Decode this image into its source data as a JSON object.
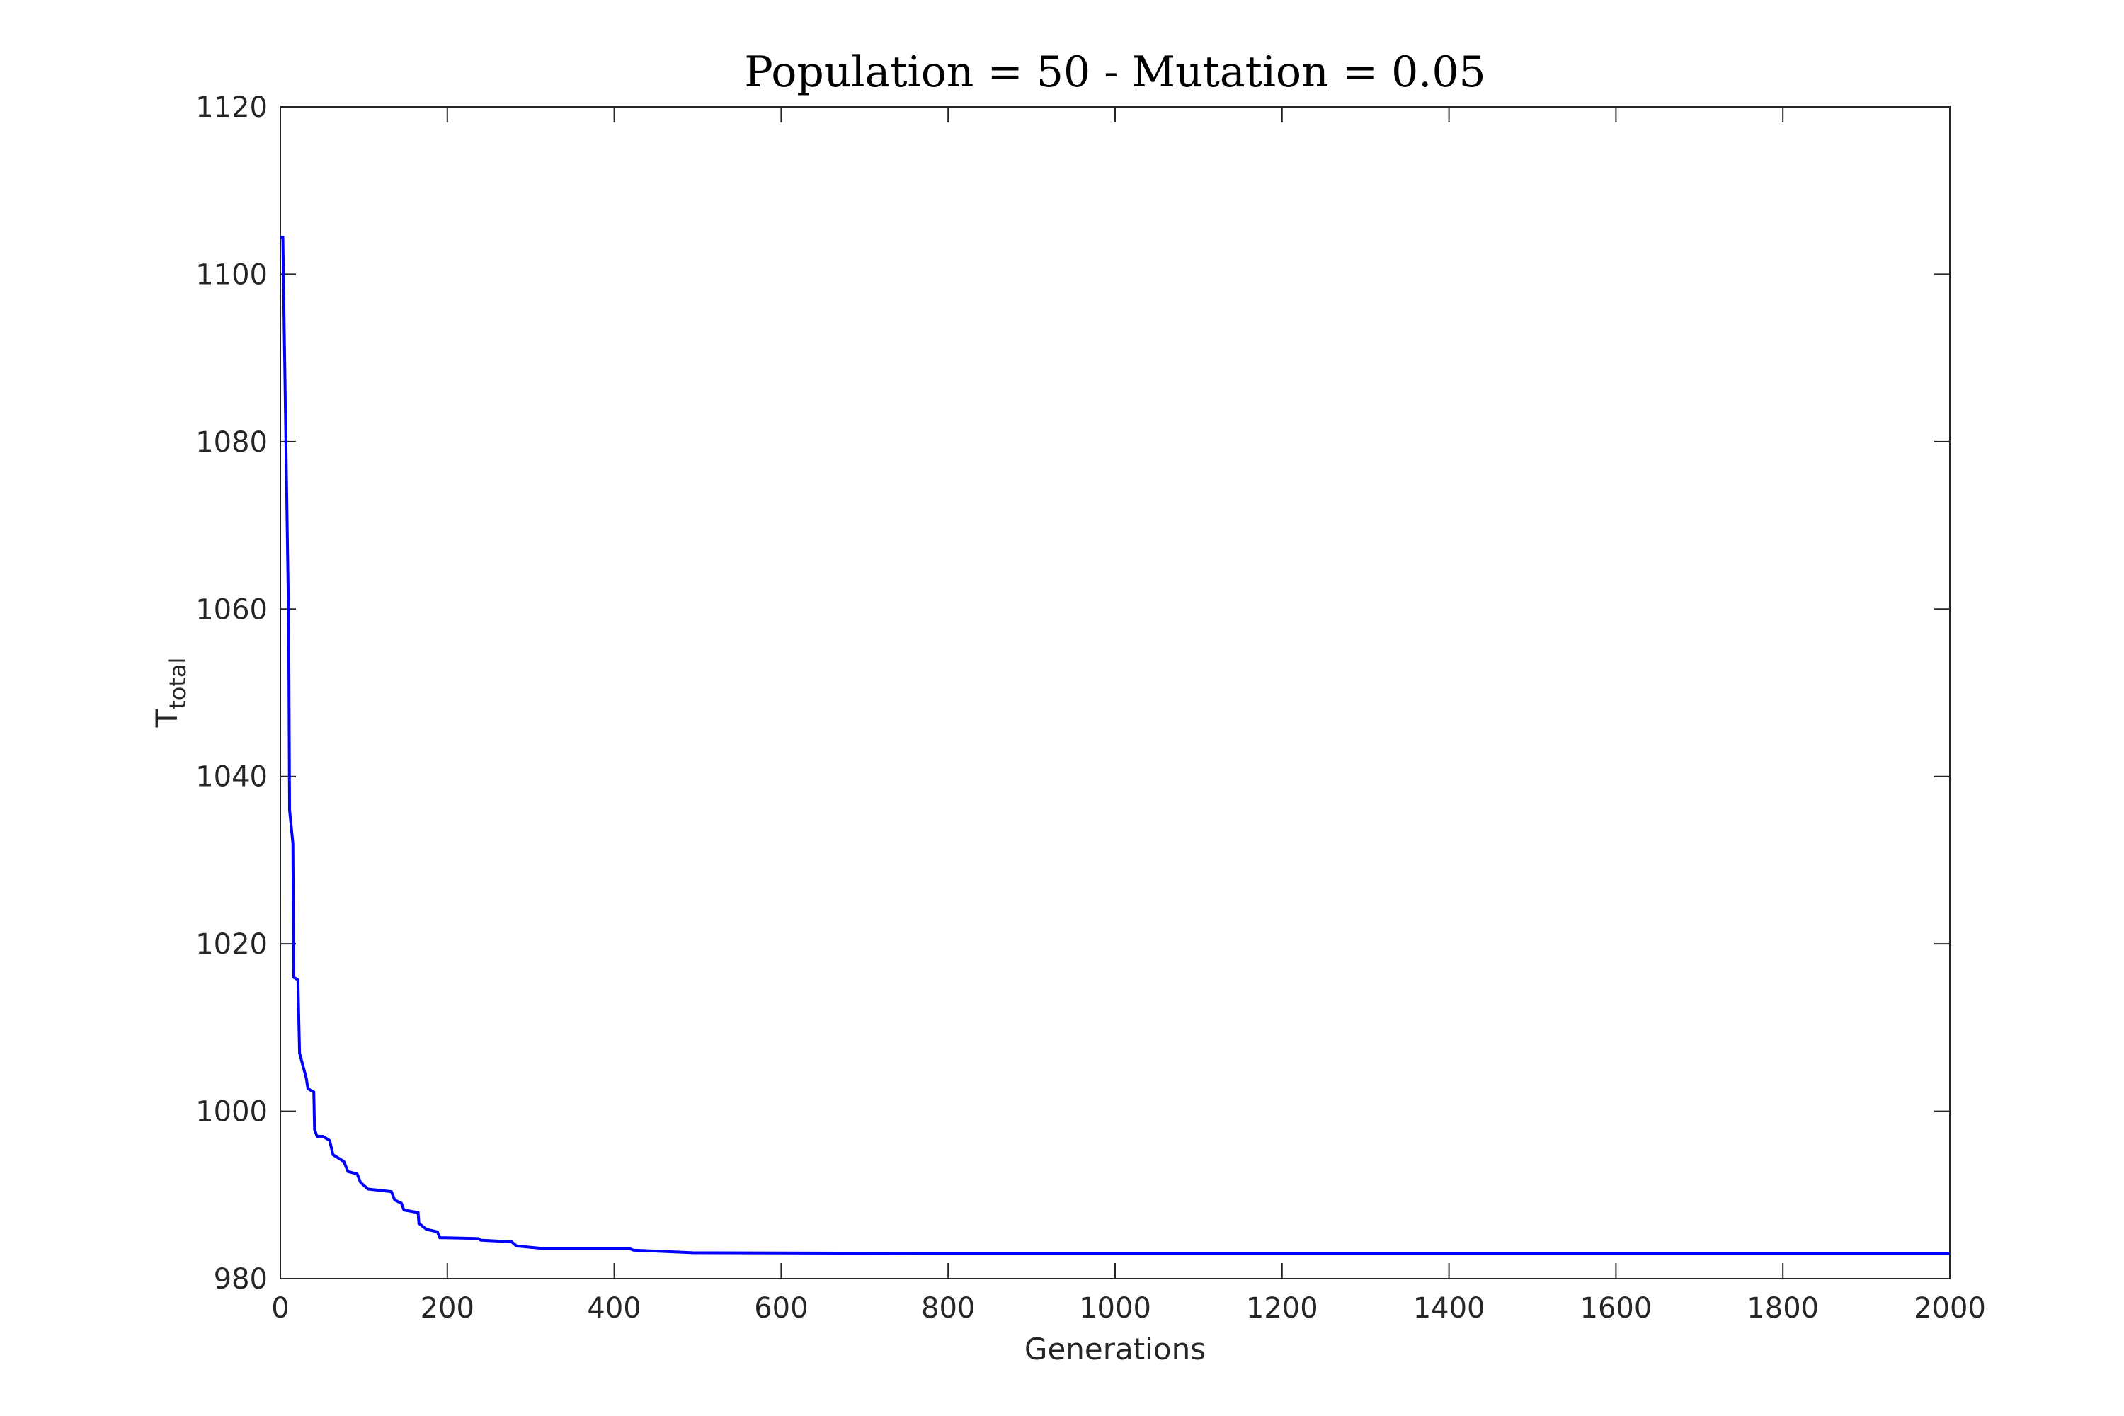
{
  "chart_data": {
    "type": "line",
    "title": "Population = 50 - Mutation = 0.05",
    "xlabel": "Generations",
    "ylabel_main": "T",
    "ylabel_sub": "total",
    "xlim": [
      0,
      2000
    ],
    "ylim": [
      980,
      1120
    ],
    "xticks": [
      0,
      200,
      400,
      600,
      800,
      1000,
      1200,
      1400,
      1600,
      1800,
      2000
    ],
    "yticks": [
      980,
      1000,
      1020,
      1040,
      1060,
      1080,
      1100,
      1120
    ],
    "grid": false,
    "line_color": "#0000ff",
    "series": [
      {
        "name": "T_total",
        "x": [
          0,
          3,
          10,
          11,
          15,
          16,
          21,
          23,
          26,
          31,
          33,
          40,
          41,
          44,
          51,
          59,
          63,
          76,
          81,
          92,
          96,
          105,
          133,
          137,
          145,
          148,
          165,
          166,
          175,
          188,
          191,
          237,
          240,
          277,
          283,
          315,
          418,
          423,
          448,
          494,
          800,
          2000
        ],
        "y": [
          1104.4,
          1104.4,
          1057.7,
          1036,
          1032,
          1016,
          1015.7,
          1007,
          1005.8,
          1004,
          1002.7,
          1002.3,
          997.8,
          997,
          997,
          996.5,
          994.8,
          994,
          992.8,
          992.5,
          991.5,
          990.7,
          990.4,
          989.4,
          989,
          988.2,
          987.9,
          986.6,
          985.9,
          985.6,
          984.9,
          984.8,
          984.6,
          984.4,
          983.9,
          983.6,
          983.6,
          983.4,
          983.3,
          983.1,
          983.0,
          983.0
        ]
      }
    ]
  }
}
